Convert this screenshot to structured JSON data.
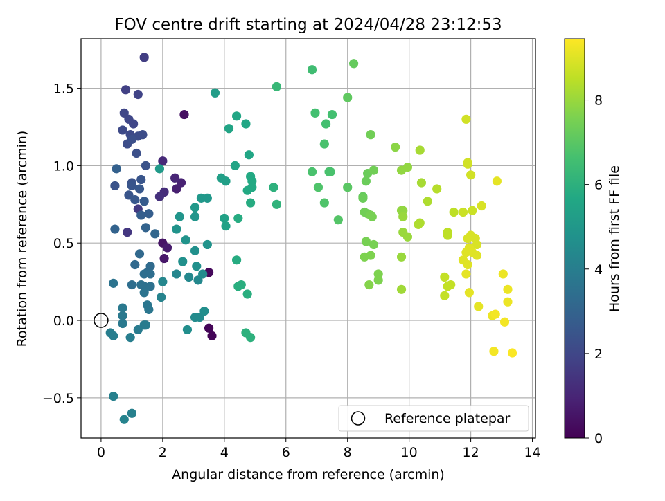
{
  "chart_data": {
    "type": "scatter",
    "title": "FOV centre drift starting at 2024/04/28 23:12:53",
    "xlabel": "Angular distance from reference (arcmin)",
    "ylabel": "Rotation from reference (arcmin)",
    "xlim": [
      -0.65,
      14.1
    ],
    "ylim": [
      -0.76,
      1.82
    ],
    "xticks": [
      0,
      2,
      4,
      6,
      8,
      10,
      12,
      14
    ],
    "xtick_labels": [
      "0",
      "2",
      "4",
      "6",
      "8",
      "10",
      "12",
      "14"
    ],
    "yticks": [
      -0.5,
      0.0,
      0.5,
      1.0,
      1.5
    ],
    "ytick_labels": [
      "−0.5",
      "0.0",
      "0.5",
      "1.0",
      "1.5"
    ],
    "grid": true,
    "colormap": "viridis",
    "colorbar": {
      "label": "Hours from first FF file",
      "range": [
        0,
        9.45
      ],
      "ticks": [
        0,
        2,
        4,
        6,
        8
      ],
      "tick_labels": [
        "0",
        "2",
        "4",
        "6",
        "8"
      ]
    },
    "legend": {
      "position": "lower-right",
      "entries": [
        {
          "marker": "open-circle",
          "label": "Reference platepar"
        }
      ]
    },
    "reference_point": {
      "x": 0,
      "y": 0
    },
    "points": [
      {
        "x": 3.5,
        "y": -0.05,
        "t": 0.1
      },
      {
        "x": 3.6,
        "y": -0.1,
        "t": 0.1
      },
      {
        "x": 3.5,
        "y": 0.31,
        "t": 0.2
      },
      {
        "x": 2.7,
        "y": 1.33,
        "t": 0.4
      },
      {
        "x": 2.0,
        "y": 0.5,
        "t": 0.5
      },
      {
        "x": 2.05,
        "y": 0.4,
        "t": 0.6
      },
      {
        "x": 2.15,
        "y": 0.47,
        "t": 0.7
      },
      {
        "x": 2.45,
        "y": 0.85,
        "t": 0.8
      },
      {
        "x": 2.6,
        "y": 0.89,
        "t": 0.9
      },
      {
        "x": 2.4,
        "y": 0.92,
        "t": 1.0
      },
      {
        "x": 2.0,
        "y": 1.03,
        "t": 1.1
      },
      {
        "x": 2.05,
        "y": 0.83,
        "t": 1.2
      },
      {
        "x": 1.9,
        "y": 0.8,
        "t": 1.3
      },
      {
        "x": 0.85,
        "y": 0.57,
        "t": 1.5
      },
      {
        "x": 1.2,
        "y": 0.72,
        "t": 1.6
      },
      {
        "x": 1.4,
        "y": 1.7,
        "t": 1.7
      },
      {
        "x": 0.8,
        "y": 1.49,
        "t": 1.8
      },
      {
        "x": 1.2,
        "y": 1.46,
        "t": 1.9
      },
      {
        "x": 0.75,
        "y": 1.34,
        "t": 2.0
      },
      {
        "x": 0.9,
        "y": 1.3,
        "t": 2.0
      },
      {
        "x": 1.05,
        "y": 1.27,
        "t": 2.0
      },
      {
        "x": 0.7,
        "y": 1.23,
        "t": 2.1
      },
      {
        "x": 0.95,
        "y": 1.2,
        "t": 2.1
      },
      {
        "x": 1.2,
        "y": 1.19,
        "t": 2.2
      },
      {
        "x": 1.35,
        "y": 1.2,
        "t": 2.2
      },
      {
        "x": 0.85,
        "y": 1.14,
        "t": 2.2
      },
      {
        "x": 1.0,
        "y": 1.17,
        "t": 2.3
      },
      {
        "x": 1.15,
        "y": 1.08,
        "t": 2.3
      },
      {
        "x": 1.45,
        "y": 1.0,
        "t": 2.4
      },
      {
        "x": 0.45,
        "y": 0.87,
        "t": 2.4
      },
      {
        "x": 1.0,
        "y": 0.89,
        "t": 2.4
      },
      {
        "x": 1.0,
        "y": 0.87,
        "t": 2.5
      },
      {
        "x": 1.3,
        "y": 0.91,
        "t": 2.5
      },
      {
        "x": 0.9,
        "y": 0.81,
        "t": 2.5
      },
      {
        "x": 1.25,
        "y": 0.85,
        "t": 2.6
      },
      {
        "x": 1.1,
        "y": 0.78,
        "t": 2.6
      },
      {
        "x": 1.4,
        "y": 0.77,
        "t": 2.7
      },
      {
        "x": 1.3,
        "y": 0.68,
        "t": 2.8
      },
      {
        "x": 1.55,
        "y": 0.69,
        "t": 2.8
      },
      {
        "x": 0.5,
        "y": 0.98,
        "t": 2.9
      },
      {
        "x": 0.45,
        "y": 0.59,
        "t": 3.0
      },
      {
        "x": 1.45,
        "y": 0.6,
        "t": 3.0
      },
      {
        "x": 1.75,
        "y": 0.56,
        "t": 3.1
      },
      {
        "x": 1.25,
        "y": 0.43,
        "t": 3.2
      },
      {
        "x": 1.1,
        "y": 0.36,
        "t": 3.2
      },
      {
        "x": 1.6,
        "y": 0.35,
        "t": 3.3
      },
      {
        "x": 1.5,
        "y": 0.31,
        "t": 3.3
      },
      {
        "x": 1.4,
        "y": 0.3,
        "t": 3.4
      },
      {
        "x": 1.6,
        "y": 0.3,
        "t": 3.4
      },
      {
        "x": 1.0,
        "y": 0.23,
        "t": 3.4
      },
      {
        "x": 1.3,
        "y": 0.23,
        "t": 3.5
      },
      {
        "x": 1.4,
        "y": 0.22,
        "t": 3.5
      },
      {
        "x": 1.6,
        "y": 0.22,
        "t": 3.5
      },
      {
        "x": 1.4,
        "y": 0.18,
        "t": 3.6
      },
      {
        "x": 0.4,
        "y": 0.24,
        "t": 3.6
      },
      {
        "x": 1.5,
        "y": 0.1,
        "t": 3.7
      },
      {
        "x": 1.55,
        "y": 0.07,
        "t": 3.7
      },
      {
        "x": 0.7,
        "y": 0.08,
        "t": 3.8
      },
      {
        "x": 0.7,
        "y": 0.03,
        "t": 3.8
      },
      {
        "x": 0.7,
        "y": -0.02,
        "t": 3.8
      },
      {
        "x": 1.4,
        "y": -0.03,
        "t": 3.9
      },
      {
        "x": 1.45,
        "y": -0.03,
        "t": 3.9
      },
      {
        "x": 1.2,
        "y": -0.06,
        "t": 3.9
      },
      {
        "x": 0.3,
        "y": -0.08,
        "t": 4.0
      },
      {
        "x": 0.4,
        "y": -0.1,
        "t": 4.0
      },
      {
        "x": 0.95,
        "y": -0.11,
        "t": 4.0
      },
      {
        "x": 0.4,
        "y": -0.49,
        "t": 4.1
      },
      {
        "x": 1.0,
        "y": -0.6,
        "t": 4.1
      },
      {
        "x": 0.75,
        "y": -0.64,
        "t": 4.2
      },
      {
        "x": 1.95,
        "y": 0.15,
        "t": 4.2
      },
      {
        "x": 2.0,
        "y": 0.25,
        "t": 4.3
      },
      {
        "x": 2.45,
        "y": 0.3,
        "t": 4.3
      },
      {
        "x": 2.85,
        "y": 0.28,
        "t": 4.4
      },
      {
        "x": 3.15,
        "y": 0.26,
        "t": 4.4
      },
      {
        "x": 3.3,
        "y": 0.3,
        "t": 4.5
      },
      {
        "x": 3.05,
        "y": 0.02,
        "t": 4.5
      },
      {
        "x": 3.2,
        "y": 0.02,
        "t": 4.5
      },
      {
        "x": 3.35,
        "y": 0.06,
        "t": 4.6
      },
      {
        "x": 2.8,
        "y": -0.06,
        "t": 4.6
      },
      {
        "x": 3.1,
        "y": 0.35,
        "t": 4.7
      },
      {
        "x": 3.05,
        "y": 0.45,
        "t": 4.7
      },
      {
        "x": 2.65,
        "y": 0.38,
        "t": 4.7
      },
      {
        "x": 2.75,
        "y": 0.52,
        "t": 4.8
      },
      {
        "x": 2.45,
        "y": 0.59,
        "t": 4.8
      },
      {
        "x": 3.45,
        "y": 0.49,
        "t": 4.8
      },
      {
        "x": 2.55,
        "y": 0.67,
        "t": 4.9
      },
      {
        "x": 3.05,
        "y": 0.67,
        "t": 4.9
      },
      {
        "x": 3.05,
        "y": 0.73,
        "t": 5.0
      },
      {
        "x": 3.25,
        "y": 0.79,
        "t": 5.0
      },
      {
        "x": 3.45,
        "y": 0.79,
        "t": 5.0
      },
      {
        "x": 1.9,
        "y": 0.98,
        "t": 5.1
      },
      {
        "x": 3.7,
        "y": 1.47,
        "t": 5.2
      },
      {
        "x": 3.9,
        "y": 0.92,
        "t": 5.3
      },
      {
        "x": 4.05,
        "y": 0.9,
        "t": 5.3
      },
      {
        "x": 4.0,
        "y": 0.66,
        "t": 5.4
      },
      {
        "x": 4.05,
        "y": 0.61,
        "t": 5.4
      },
      {
        "x": 4.35,
        "y": 1.0,
        "t": 5.5
      },
      {
        "x": 4.15,
        "y": 1.24,
        "t": 5.5
      },
      {
        "x": 4.4,
        "y": 1.32,
        "t": 5.6
      },
      {
        "x": 4.7,
        "y": 1.27,
        "t": 5.6
      },
      {
        "x": 4.8,
        "y": 1.07,
        "t": 5.6
      },
      {
        "x": 4.85,
        "y": 0.93,
        "t": 5.7
      },
      {
        "x": 4.9,
        "y": 0.9,
        "t": 5.7
      },
      {
        "x": 4.9,
        "y": 0.86,
        "t": 5.7
      },
      {
        "x": 4.75,
        "y": 0.84,
        "t": 5.7
      },
      {
        "x": 4.85,
        "y": 0.76,
        "t": 5.8
      },
      {
        "x": 4.45,
        "y": 0.66,
        "t": 5.8
      },
      {
        "x": 4.4,
        "y": 0.39,
        "t": 5.8
      },
      {
        "x": 4.45,
        "y": 0.22,
        "t": 5.9
      },
      {
        "x": 4.55,
        "y": 0.23,
        "t": 5.9
      },
      {
        "x": 4.75,
        "y": 0.17,
        "t": 5.9
      },
      {
        "x": 4.7,
        "y": -0.08,
        "t": 6.0
      },
      {
        "x": 4.85,
        "y": -0.11,
        "t": 6.0
      },
      {
        "x": 5.6,
        "y": 0.86,
        "t": 6.0
      },
      {
        "x": 5.7,
        "y": 0.75,
        "t": 6.1
      },
      {
        "x": 5.7,
        "y": 1.51,
        "t": 6.3
      },
      {
        "x": 6.85,
        "y": 1.62,
        "t": 6.5
      },
      {
        "x": 6.95,
        "y": 1.34,
        "t": 6.6
      },
      {
        "x": 7.3,
        "y": 1.27,
        "t": 6.6
      },
      {
        "x": 7.5,
        "y": 1.33,
        "t": 6.6
      },
      {
        "x": 7.25,
        "y": 1.14,
        "t": 6.7
      },
      {
        "x": 6.85,
        "y": 0.96,
        "t": 6.7
      },
      {
        "x": 7.4,
        "y": 0.96,
        "t": 6.7
      },
      {
        "x": 7.45,
        "y": 0.96,
        "t": 6.7
      },
      {
        "x": 7.05,
        "y": 0.86,
        "t": 6.8
      },
      {
        "x": 7.25,
        "y": 0.76,
        "t": 6.8
      },
      {
        "x": 7.7,
        "y": 0.65,
        "t": 6.9
      },
      {
        "x": 8.0,
        "y": 0.86,
        "t": 7.0
      },
      {
        "x": 8.0,
        "y": 1.44,
        "t": 7.1
      },
      {
        "x": 8.2,
        "y": 1.66,
        "t": 7.2
      },
      {
        "x": 8.5,
        "y": 0.8,
        "t": 7.2
      },
      {
        "x": 8.5,
        "y": 0.79,
        "t": 7.3
      },
      {
        "x": 8.6,
        "y": 0.9,
        "t": 7.3
      },
      {
        "x": 8.65,
        "y": 0.95,
        "t": 7.3
      },
      {
        "x": 8.85,
        "y": 0.97,
        "t": 7.4
      },
      {
        "x": 8.75,
        "y": 1.2,
        "t": 7.4
      },
      {
        "x": 8.55,
        "y": 0.7,
        "t": 7.4
      },
      {
        "x": 8.65,
        "y": 0.69,
        "t": 7.4
      },
      {
        "x": 8.75,
        "y": 0.68,
        "t": 7.5
      },
      {
        "x": 8.8,
        "y": 0.67,
        "t": 7.5
      },
      {
        "x": 8.6,
        "y": 0.51,
        "t": 7.5
      },
      {
        "x": 8.85,
        "y": 0.49,
        "t": 7.5
      },
      {
        "x": 8.75,
        "y": 0.42,
        "t": 7.6
      },
      {
        "x": 8.55,
        "y": 0.41,
        "t": 7.6
      },
      {
        "x": 9.0,
        "y": 0.3,
        "t": 7.6
      },
      {
        "x": 9.0,
        "y": 0.26,
        "t": 7.6
      },
      {
        "x": 8.7,
        "y": 0.23,
        "t": 7.7
      },
      {
        "x": 9.55,
        "y": 1.12,
        "t": 7.8
      },
      {
        "x": 9.75,
        "y": 0.97,
        "t": 7.9
      },
      {
        "x": 9.95,
        "y": 0.99,
        "t": 7.9
      },
      {
        "x": 9.75,
        "y": 0.71,
        "t": 7.9
      },
      {
        "x": 9.8,
        "y": 0.71,
        "t": 7.9
      },
      {
        "x": 9.8,
        "y": 0.67,
        "t": 8.0
      },
      {
        "x": 9.8,
        "y": 0.57,
        "t": 8.0
      },
      {
        "x": 9.95,
        "y": 0.54,
        "t": 8.0
      },
      {
        "x": 9.75,
        "y": 0.41,
        "t": 8.0
      },
      {
        "x": 9.75,
        "y": 0.2,
        "t": 8.1
      },
      {
        "x": 10.35,
        "y": 1.1,
        "t": 8.2
      },
      {
        "x": 10.4,
        "y": 0.89,
        "t": 8.2
      },
      {
        "x": 10.6,
        "y": 0.77,
        "t": 8.3
      },
      {
        "x": 10.3,
        "y": 0.62,
        "t": 8.3
      },
      {
        "x": 10.35,
        "y": 0.63,
        "t": 8.3
      },
      {
        "x": 10.9,
        "y": 0.85,
        "t": 8.4
      },
      {
        "x": 11.25,
        "y": 0.57,
        "t": 8.5
      },
      {
        "x": 11.25,
        "y": 0.55,
        "t": 8.5
      },
      {
        "x": 11.45,
        "y": 0.7,
        "t": 8.5
      },
      {
        "x": 11.15,
        "y": 0.28,
        "t": 8.6
      },
      {
        "x": 11.25,
        "y": 0.22,
        "t": 8.6
      },
      {
        "x": 11.15,
        "y": 0.16,
        "t": 8.6
      },
      {
        "x": 11.35,
        "y": 0.23,
        "t": 8.6
      },
      {
        "x": 11.75,
        "y": 0.7,
        "t": 8.7
      },
      {
        "x": 12.05,
        "y": 0.71,
        "t": 8.7
      },
      {
        "x": 11.85,
        "y": 1.3,
        "t": 8.8
      },
      {
        "x": 11.9,
        "y": 1.02,
        "t": 8.8
      },
      {
        "x": 11.9,
        "y": 1.01,
        "t": 8.8
      },
      {
        "x": 12.0,
        "y": 0.94,
        "t": 8.8
      },
      {
        "x": 12.35,
        "y": 0.74,
        "t": 8.9
      },
      {
        "x": 11.9,
        "y": 0.53,
        "t": 8.9
      },
      {
        "x": 12.0,
        "y": 0.55,
        "t": 8.9
      },
      {
        "x": 12.15,
        "y": 0.53,
        "t": 8.9
      },
      {
        "x": 12.2,
        "y": 0.49,
        "t": 8.9
      },
      {
        "x": 11.95,
        "y": 0.47,
        "t": 9.0
      },
      {
        "x": 11.85,
        "y": 0.44,
        "t": 9.0
      },
      {
        "x": 12.05,
        "y": 0.44,
        "t": 9.0
      },
      {
        "x": 12.2,
        "y": 0.42,
        "t": 9.0
      },
      {
        "x": 11.75,
        "y": 0.39,
        "t": 9.0
      },
      {
        "x": 11.9,
        "y": 0.36,
        "t": 9.0
      },
      {
        "x": 11.85,
        "y": 0.3,
        "t": 9.1
      },
      {
        "x": 11.95,
        "y": 0.18,
        "t": 9.1
      },
      {
        "x": 12.25,
        "y": 0.09,
        "t": 9.1
      },
      {
        "x": 12.85,
        "y": 0.9,
        "t": 9.1
      },
      {
        "x": 13.05,
        "y": 0.3,
        "t": 9.2
      },
      {
        "x": 13.2,
        "y": 0.2,
        "t": 9.2
      },
      {
        "x": 13.2,
        "y": 0.12,
        "t": 9.2
      },
      {
        "x": 12.7,
        "y": 0.03,
        "t": 9.2
      },
      {
        "x": 12.8,
        "y": 0.04,
        "t": 9.3
      },
      {
        "x": 13.1,
        "y": -0.01,
        "t": 9.3
      },
      {
        "x": 12.75,
        "y": -0.2,
        "t": 9.3
      },
      {
        "x": 13.35,
        "y": -0.21,
        "t": 9.4
      }
    ]
  }
}
